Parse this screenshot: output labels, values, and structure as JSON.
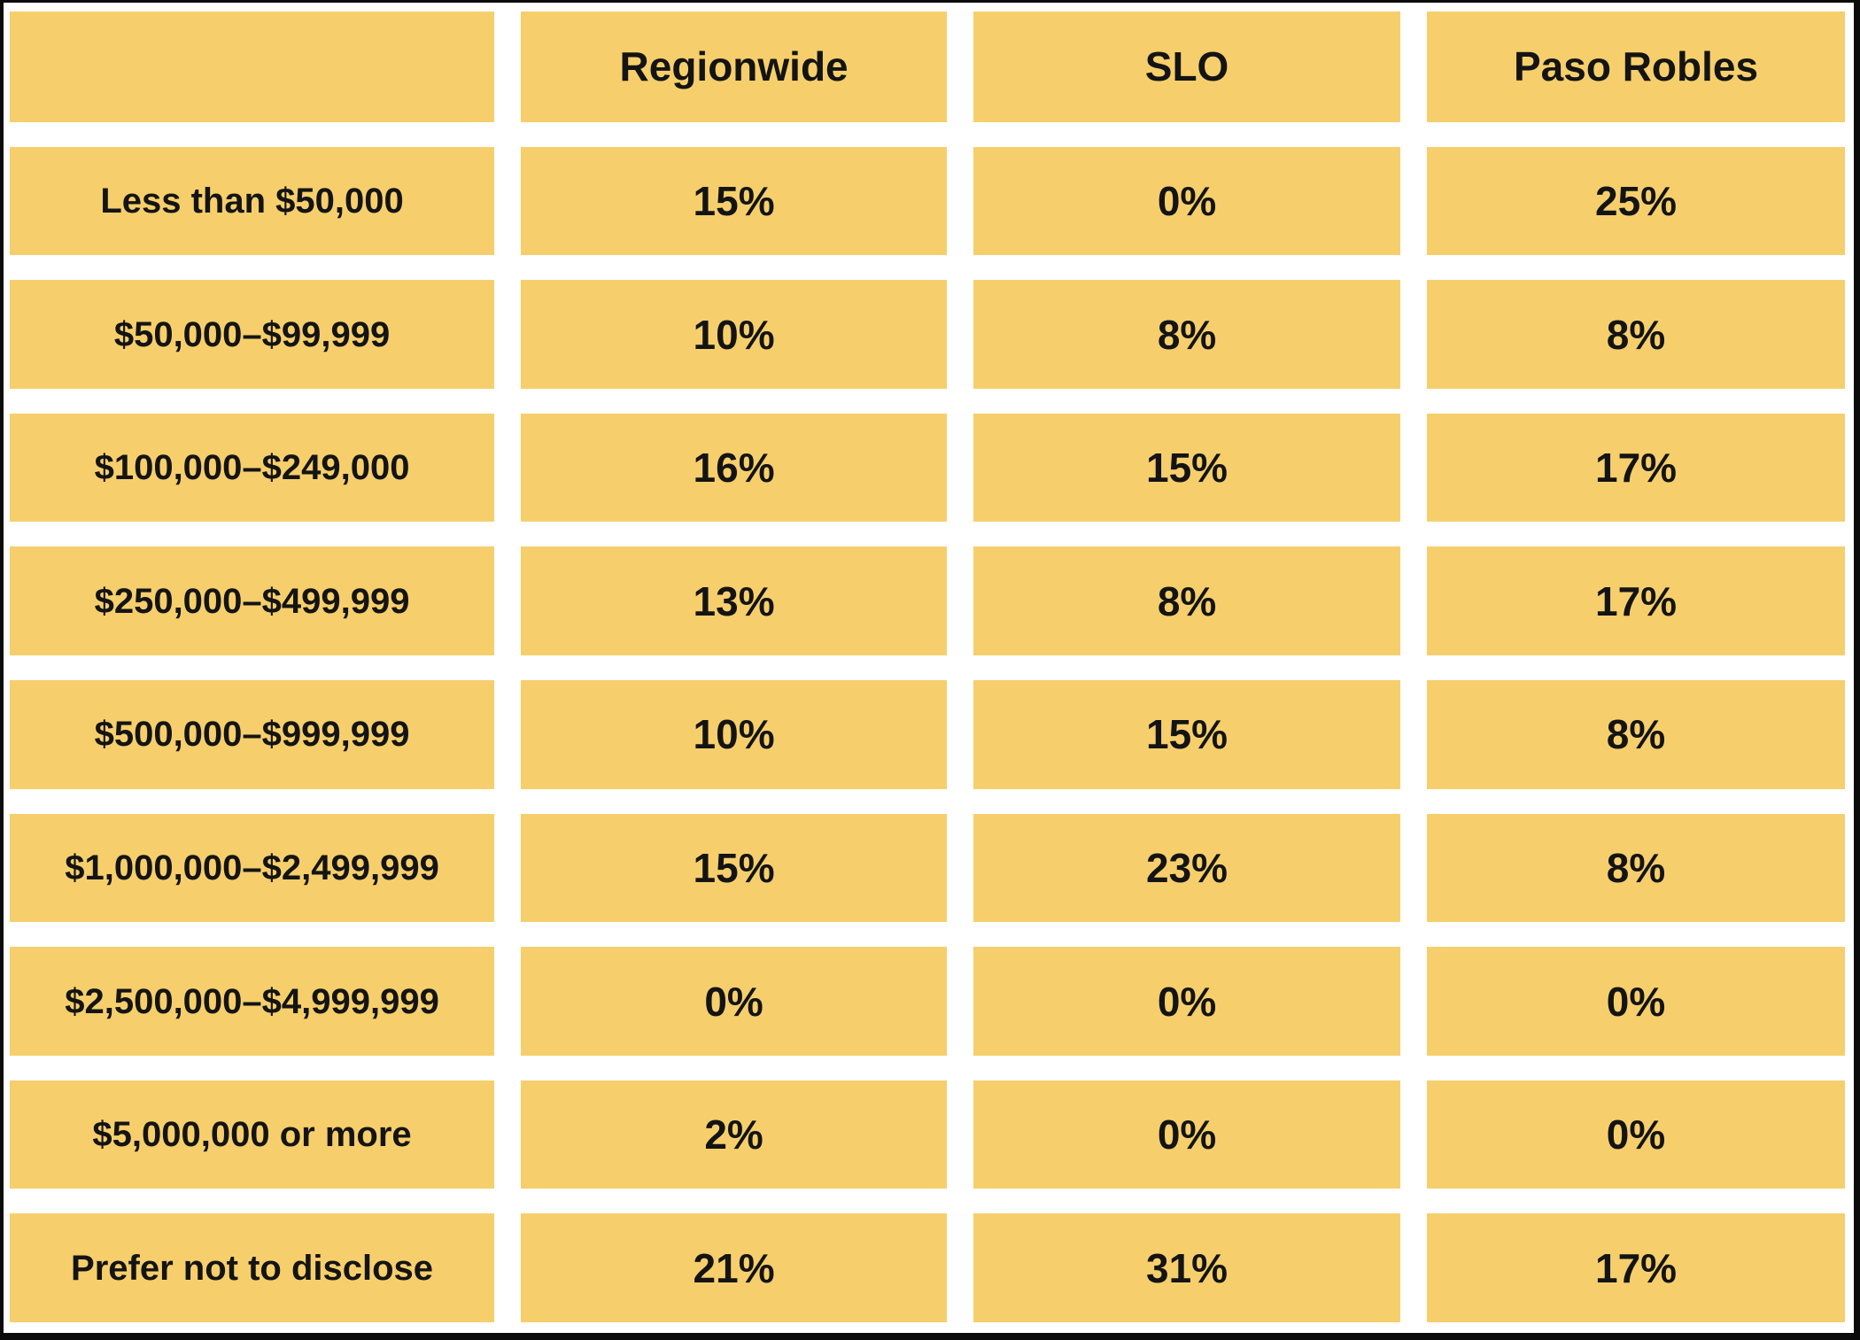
{
  "table": {
    "corner_label": "",
    "columns": [
      "Regionwide",
      "SLO",
      "Paso Robles"
    ],
    "rows": [
      {
        "label": "Less than $50,000",
        "values": [
          "15%",
          "0%",
          "25%"
        ]
      },
      {
        "label": "$50,000–$99,999",
        "values": [
          "10%",
          "8%",
          "8%"
        ]
      },
      {
        "label": "$100,000–$249,000",
        "values": [
          "16%",
          "15%",
          "17%"
        ]
      },
      {
        "label": "$250,000–$499,999",
        "values": [
          "13%",
          "8%",
          "17%"
        ]
      },
      {
        "label": "$500,000–$999,999",
        "values": [
          "10%",
          "15%",
          "8%"
        ]
      },
      {
        "label": "$1,000,000–$2,499,999",
        "values": [
          "15%",
          "23%",
          "8%"
        ]
      },
      {
        "label": "$2,500,000–$4,999,999",
        "values": [
          "0%",
          "0%",
          "0%"
        ]
      },
      {
        "label": "$5,000,000 or more",
        "values": [
          "2%",
          "0%",
          "0%"
        ]
      },
      {
        "label": "Prefer not to disclose",
        "values": [
          "21%",
          "31%",
          "17%"
        ]
      }
    ],
    "colors": {
      "cell_background": "#F6CF6C",
      "text": "#141414",
      "gap_background": "#FFFFFF",
      "frame_border": "#0B0B0B"
    }
  },
  "chart_data": {
    "type": "table",
    "title": "",
    "categories": [
      "Less than $50,000",
      "$50,000–$99,999",
      "$100,000–$249,000",
      "$250,000–$499,999",
      "$500,000–$999,999",
      "$1,000,000–$2,499,999",
      "$2,500,000–$4,999,999",
      "$5,000,000 or more",
      "Prefer not to disclose"
    ],
    "series": [
      {
        "name": "Regionwide",
        "values": [
          15,
          10,
          16,
          13,
          10,
          15,
          0,
          2,
          21
        ]
      },
      {
        "name": "SLO",
        "values": [
          0,
          8,
          15,
          8,
          15,
          23,
          0,
          0,
          31
        ]
      },
      {
        "name": "Paso Robles",
        "values": [
          25,
          8,
          17,
          17,
          8,
          8,
          0,
          0,
          17
        ]
      }
    ],
    "value_unit": "%",
    "layout_hints": "grid of separated gold cells on white background, bold dark text, first column row labels, header row of region names, empty top-left corner cell"
  }
}
